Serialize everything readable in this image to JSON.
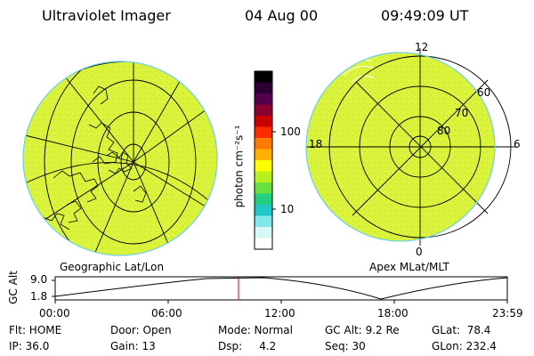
{
  "header": {
    "title": "Ultraviolet Imager",
    "date": "04 Aug 00",
    "time": "09:49:09 UT"
  },
  "left_panel": {
    "label": "Geographic Lat/Lon"
  },
  "right_panel": {
    "label": "Apex MLat/MLT",
    "mlt_labels": [
      "12",
      "18",
      "6",
      "0"
    ],
    "mlat_labels": [
      "60",
      "70",
      "80"
    ]
  },
  "colorbar": {
    "unit_label": "photon cm⁻²s⁻¹",
    "tick_labels": [
      "100",
      "10"
    ],
    "colors": [
      "#000000",
      "#2a0033",
      "#55004d",
      "#8a0030",
      "#c80000",
      "#ff2a00",
      "#ff7a00",
      "#ffb000",
      "#ffff00",
      "#b8f020",
      "#6ae040",
      "#20d080",
      "#20c8c8",
      "#80e8e8",
      "#d8f8f8",
      "#ffffff"
    ]
  },
  "altitude_plot": {
    "ylabel": "GC Alt",
    "ytick_labels": [
      "9.0",
      "1.8"
    ],
    "xtick_labels": [
      "00:00",
      "06:00",
      "12:00",
      "18:00",
      "23:59"
    ],
    "marker_color": "#e00000"
  },
  "footer": {
    "row1": {
      "filter": "Flt: HOME",
      "door": "Door: Open",
      "mode": "Mode: Normal",
      "gc_alt": "GC Alt: 9.2 Re",
      "glat": "GLat:  78.4"
    },
    "row2": {
      "ip": "IP: 36.0",
      "gain": "Gain: 13",
      "dsp": "Dsp:     4.2",
      "seq": "Seq: 30",
      "glon": "GLon: 232.4"
    }
  },
  "image_color": "#d9f23a",
  "rim_color": "#6fd0e8"
}
